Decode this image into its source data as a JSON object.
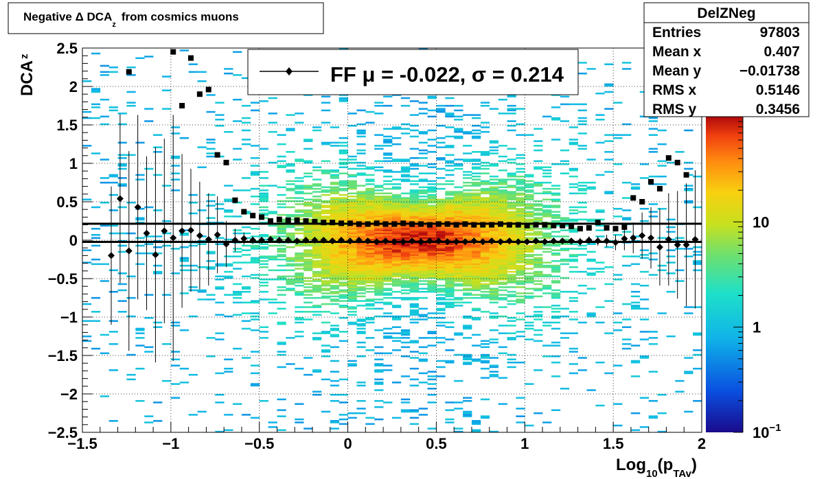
{
  "chart_data": {
    "type": "heatmap",
    "title": "Negative Δ DCA",
    "title_sub": "z",
    "title_tail": "from cosmics muons",
    "xlabel": "Log",
    "xlabel_sub1": "10",
    "xlabel_mid": "(p",
    "xlabel_sub2": "TAv",
    "xlabel_end": ")",
    "ylabel": "DCA",
    "ylabel_sub": "z",
    "xlim": [
      -1.5,
      2.0
    ],
    "ylim": [
      -2.5,
      2.5
    ],
    "x_ticks": [
      "−1.5",
      "−1",
      "−0.5",
      "0",
      "0.5",
      "1",
      "1.5",
      "2"
    ],
    "x_tick_values": [
      -1.5,
      -1,
      -0.5,
      0,
      0.5,
      1,
      1.5,
      2
    ],
    "y_ticks": [
      "−2.5",
      "−2",
      "−1.5",
      "−1",
      "−0.5",
      "0",
      "0.5",
      "1",
      "1.5",
      "2",
      "2.5"
    ],
    "y_tick_values": [
      -2.5,
      -2,
      -1.5,
      -1,
      -0.5,
      0,
      0.5,
      1,
      1.5,
      2,
      2.5
    ],
    "grid": true,
    "colorbar": {
      "scale": "log",
      "range": [
        0.1,
        100
      ],
      "labels": [
        {
          "value": 10,
          "text": "10"
        },
        {
          "value": 1,
          "text": "1"
        },
        {
          "value": 0.1,
          "text": "10",
          "sup": "−1"
        }
      ]
    },
    "legend": {
      "position": "top-center",
      "label": "FF μ = -0.022, σ =   0.214"
    },
    "stats": {
      "name": "DelZNeg",
      "rows": [
        {
          "label": "Entries",
          "value": "97803"
        },
        {
          "label": "Mean x",
          "value": "0.407"
        },
        {
          "label": "Mean y",
          "value": "−0.01738"
        },
        {
          "label": "RMS x",
          "value": "0.5146"
        },
        {
          "label": "RMS y",
          "value": "0.3456"
        }
      ]
    },
    "fit_lines": [
      {
        "name": "mean",
        "y": -0.022
      },
      {
        "name": "sigma",
        "y": 0.214
      }
    ],
    "mean_series": {
      "x": [
        -1.337,
        -1.287,
        -1.237,
        -1.187,
        -1.137,
        -1.087,
        -1.037,
        -0.987,
        -0.937,
        -0.887,
        -0.837,
        -0.787,
        -0.737,
        -0.687,
        -0.637,
        -0.587,
        -0.537,
        -0.487,
        -0.437,
        -0.387,
        -0.337,
        -0.287,
        -0.237,
        -0.187,
        -0.137,
        -0.087,
        -0.037,
        0.013,
        0.063,
        0.113,
        0.163,
        0.213,
        0.263,
        0.313,
        0.363,
        0.413,
        0.463,
        0.513,
        0.563,
        0.613,
        0.663,
        0.713,
        0.763,
        0.813,
        0.863,
        0.913,
        0.963,
        1.013,
        1.063,
        1.113,
        1.163,
        1.213,
        1.263,
        1.313,
        1.363,
        1.413,
        1.463,
        1.513,
        1.563,
        1.613,
        1.663,
        1.713,
        1.763,
        1.813,
        1.863,
        1.913,
        1.963
      ],
      "y": [
        -0.2,
        0.54,
        -0.14,
        0.43,
        0.09,
        -0.19,
        0.12,
        0.03,
        0.12,
        0.13,
        0.06,
        0.01,
        0.07,
        -0.05,
        0.0,
        0.02,
        0.0,
        0.0,
        0.01,
        0.0,
        0.0,
        -0.01,
        0.0,
        0.0,
        0.0,
        -0.01,
        0.0,
        -0.01,
        0.0,
        -0.01,
        -0.02,
        -0.01,
        -0.02,
        -0.02,
        -0.01,
        -0.02,
        -0.01,
        -0.01,
        -0.02,
        -0.02,
        -0.02,
        -0.01,
        -0.02,
        -0.01,
        -0.02,
        -0.01,
        -0.02,
        -0.02,
        -0.01,
        -0.02,
        -0.01,
        -0.01,
        -0.01,
        -0.02,
        0.0,
        -0.01,
        -0.01,
        -0.03,
        0.02,
        0.03,
        0.06,
        0.03,
        -0.09,
        0.01,
        -0.06,
        -0.06,
        0.01
      ],
      "err": [
        0.9,
        1.1,
        1.3,
        1.2,
        1.0,
        1.4,
        1.2,
        1.6,
        1.0,
        0.8,
        0.7,
        0.6,
        0.5,
        0.3,
        0.15,
        0.08,
        0.05,
        0.03,
        0.02,
        0.02,
        0.01,
        0.01,
        0.01,
        0.01,
        0.01,
        0.01,
        0.01,
        0.01,
        0.01,
        0.01,
        0.01,
        0.01,
        0.01,
        0.01,
        0.01,
        0.01,
        0.01,
        0.01,
        0.01,
        0.01,
        0.01,
        0.01,
        0.01,
        0.01,
        0.01,
        0.02,
        0.02,
        0.02,
        0.02,
        0.02,
        0.03,
        0.03,
        0.04,
        0.05,
        0.05,
        0.06,
        0.08,
        0.1,
        0.15,
        0.2,
        0.3,
        0.4,
        0.5,
        0.6,
        0.7,
        0.8,
        0.9
      ]
    },
    "rms_series": {
      "x": [
        -1.237,
        -0.987,
        -0.937,
        -0.887,
        -0.837,
        -0.787,
        -0.737,
        -0.687,
        -0.637,
        -0.587,
        -0.537,
        -0.487,
        -0.437,
        -0.387,
        -0.337,
        -0.287,
        -0.237,
        -0.187,
        -0.137,
        -0.087,
        -0.037,
        0.013,
        0.063,
        0.113,
        0.163,
        0.213,
        0.263,
        0.313,
        0.363,
        0.413,
        0.463,
        0.513,
        0.563,
        0.613,
        0.663,
        0.713,
        0.763,
        0.813,
        0.863,
        0.913,
        0.963,
        1.013,
        1.063,
        1.113,
        1.163,
        1.213,
        1.263,
        1.313,
        1.363,
        1.413,
        1.463,
        1.513,
        1.563,
        1.613,
        1.663,
        1.713,
        1.763,
        1.813,
        1.863,
        1.913,
        1.963
      ],
      "y": [
        2.19,
        2.45,
        1.75,
        2.37,
        1.9,
        1.96,
        1.11,
        1.01,
        0.52,
        0.37,
        0.32,
        0.3,
        0.25,
        0.27,
        0.26,
        0.26,
        0.25,
        0.24,
        0.23,
        0.23,
        0.22,
        0.22,
        0.21,
        0.21,
        0.22,
        0.21,
        0.21,
        0.22,
        0.21,
        0.21,
        0.2,
        0.21,
        0.21,
        0.2,
        0.21,
        0.2,
        0.2,
        0.2,
        0.21,
        0.2,
        0.2,
        0.19,
        0.2,
        0.2,
        0.19,
        0.19,
        0.18,
        0.15,
        0.16,
        0.23,
        0.16,
        0.15,
        0.17,
        0.55,
        0.5,
        0.76,
        0.67,
        1.07,
        1.01,
        0.85,
        1.77
      ]
    }
  }
}
